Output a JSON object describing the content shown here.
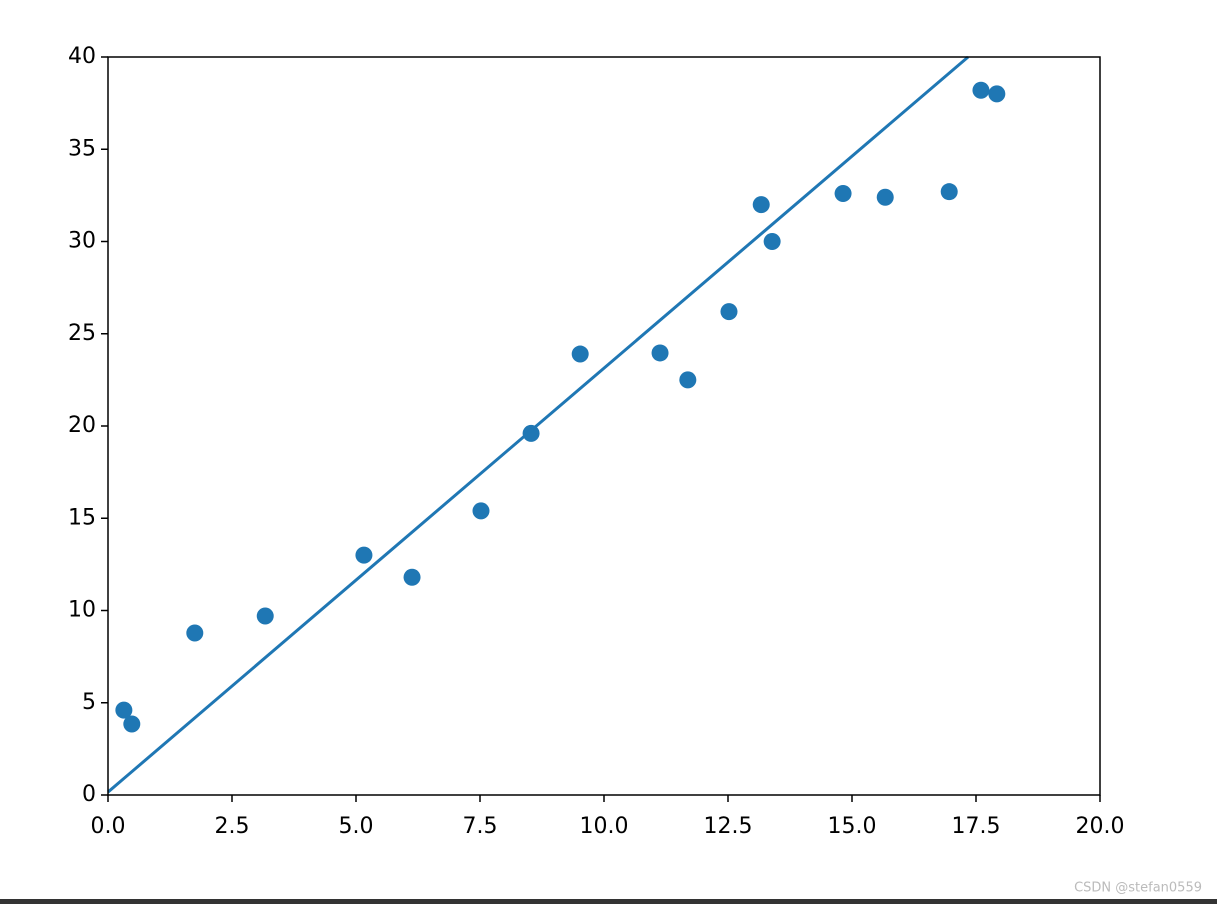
{
  "chart_data": {
    "type": "scatter",
    "series": [
      {
        "type": "scatter",
        "color": "#1f77b4",
        "x": [
          0.32,
          0.48,
          1.75,
          3.17,
          5.16,
          6.13,
          7.52,
          8.53,
          9.52,
          11.13,
          11.69,
          12.52,
          13.17,
          13.39,
          14.82,
          15.67,
          16.96,
          17.6,
          17.92
        ],
        "values": [
          4.6,
          3.85,
          8.78,
          9.7,
          13.0,
          11.8,
          15.4,
          19.6,
          23.9,
          23.96,
          22.5,
          26.2,
          32.0,
          30.0,
          32.6,
          32.4,
          32.7,
          38.2,
          38.0
        ]
      },
      {
        "type": "line",
        "color": "#1f77b4",
        "x": [
          0,
          17.34
        ],
        "values": [
          0.16,
          40
        ]
      }
    ],
    "xlim": [
      0,
      20
    ],
    "xticks": [
      {
        "value": 0,
        "label": "0.0"
      },
      2.5,
      {
        "value": 5,
        "label": "5.0"
      },
      7.5,
      {
        "value": 10,
        "label": "10.0"
      },
      12.5,
      {
        "value": 15,
        "label": "15.0"
      },
      17.5,
      {
        "value": 20,
        "label": "20.0"
      }
    ],
    "ylim": [
      0,
      40
    ],
    "yticks": [
      0,
      5,
      10,
      15,
      20,
      25,
      30,
      35,
      40
    ],
    "watermark": "CSDN @stefan0559"
  }
}
